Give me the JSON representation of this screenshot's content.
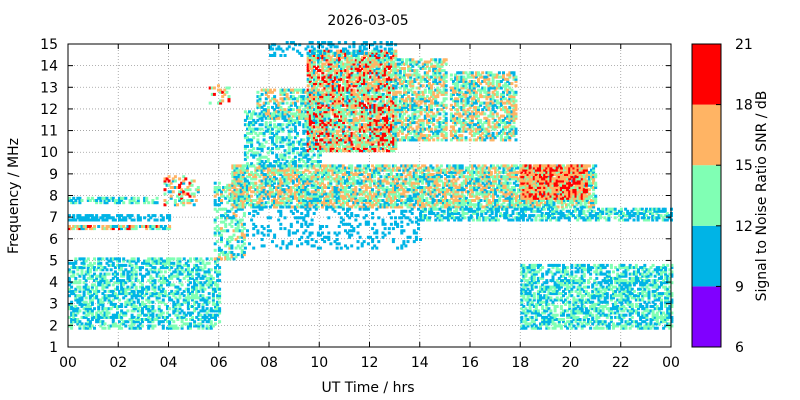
{
  "chart_data": {
    "type": "heatmap",
    "title": "2026-03-05",
    "xlabel": "UT Time / hrs",
    "ylabel": "Frequency / MHz",
    "xlim": [
      0,
      24
    ],
    "ylim": [
      1,
      15
    ],
    "x_ticks": [
      "00",
      "02",
      "04",
      "06",
      "08",
      "10",
      "12",
      "14",
      "16",
      "18",
      "20",
      "22",
      "00"
    ],
    "x_tick_values": [
      0,
      2,
      4,
      6,
      8,
      10,
      12,
      14,
      16,
      18,
      20,
      22,
      24
    ],
    "y_ticks": [
      "1",
      "2",
      "3",
      "4",
      "5",
      "6",
      "7",
      "8",
      "9",
      "10",
      "11",
      "12",
      "13",
      "14",
      "15"
    ],
    "y_tick_values": [
      1,
      2,
      3,
      4,
      5,
      6,
      7,
      8,
      9,
      10,
      11,
      12,
      13,
      14,
      15
    ],
    "grid": true,
    "colorbar": {
      "label": "Signal to Noise Ratio SNR / dB",
      "range": [
        6,
        21
      ],
      "ticks": [
        "6",
        "9",
        "12",
        "15",
        "18",
        "21"
      ],
      "tick_values": [
        6,
        9,
        12,
        15,
        18,
        21
      ],
      "bins": [
        {
          "min": 6,
          "max": 9,
          "color": "#8000ff"
        },
        {
          "min": 9,
          "max": 12,
          "color": "#00b4e6"
        },
        {
          "min": 12,
          "max": 15,
          "color": "#80ffb4"
        },
        {
          "min": 15,
          "max": 18,
          "color": "#ffb464"
        },
        {
          "min": 18,
          "max": 21,
          "color": "#ff0000"
        }
      ]
    },
    "regions": [
      {
        "t": [
          0,
          6
        ],
        "f": [
          1.8,
          5.0
        ],
        "density": 0.5,
        "snr": [
          9.5,
          14
        ]
      },
      {
        "t": [
          0,
          4
        ],
        "f": [
          6.4,
          6.6
        ],
        "density": 0.8,
        "snr": [
          10,
          20
        ]
      },
      {
        "t": [
          0,
          4
        ],
        "f": [
          6.8,
          7.0
        ],
        "density": 0.6,
        "snr": [
          10,
          12
        ]
      },
      {
        "t": [
          0,
          3.5
        ],
        "f": [
          7.6,
          7.8
        ],
        "density": 0.5,
        "snr": [
          10,
          14
        ]
      },
      {
        "t": [
          3.8,
          5.2
        ],
        "f": [
          7.5,
          8.8
        ],
        "density": 0.3,
        "snr": [
          10,
          20
        ]
      },
      {
        "t": [
          5.6,
          6.4
        ],
        "f": [
          12.2,
          13.0
        ],
        "density": 0.3,
        "snr": [
          12,
          20
        ]
      },
      {
        "t": [
          5.8,
          7.0
        ],
        "f": [
          5.0,
          8.5
        ],
        "density": 0.4,
        "snr": [
          10,
          16
        ]
      },
      {
        "t": [
          6.5,
          21.0
        ],
        "f": [
          7.4,
          9.3
        ],
        "density": 0.7,
        "snr": [
          10,
          18
        ]
      },
      {
        "t": [
          7.0,
          10.0
        ],
        "f": [
          9.3,
          11.8
        ],
        "density": 0.45,
        "snr": [
          10,
          14
        ]
      },
      {
        "t": [
          7.5,
          10.0
        ],
        "f": [
          11.5,
          12.8
        ],
        "density": 0.5,
        "snr": [
          10,
          17
        ]
      },
      {
        "t": [
          9.5,
          13.0
        ],
        "f": [
          10.0,
          14.6
        ],
        "density": 0.8,
        "snr": [
          11,
          20
        ]
      },
      {
        "t": [
          13.0,
          15.0
        ],
        "f": [
          10.5,
          14.2
        ],
        "density": 0.6,
        "snr": [
          10,
          18
        ]
      },
      {
        "t": [
          15.2,
          17.8
        ],
        "f": [
          10.5,
          13.6
        ],
        "density": 0.6,
        "snr": [
          10,
          18
        ]
      },
      {
        "t": [
          18.0,
          20.6
        ],
        "f": [
          7.8,
          9.3
        ],
        "density": 0.85,
        "snr": [
          14,
          20.5
        ]
      },
      {
        "t": [
          14.0,
          24.0
        ],
        "f": [
          6.8,
          7.3
        ],
        "density": 0.55,
        "snr": [
          10,
          13
        ]
      },
      {
        "t": [
          18.0,
          24.0
        ],
        "f": [
          1.8,
          4.7
        ],
        "density": 0.55,
        "snr": [
          10,
          14
        ]
      },
      {
        "t": [
          7.0,
          14.0
        ],
        "f": [
          5.5,
          7.4
        ],
        "density": 0.15,
        "snr": [
          10,
          12
        ]
      },
      {
        "t": [
          8.0,
          13.0
        ],
        "f": [
          14.4,
          15.0
        ],
        "density": 0.25,
        "snr": [
          10,
          12
        ]
      }
    ]
  }
}
